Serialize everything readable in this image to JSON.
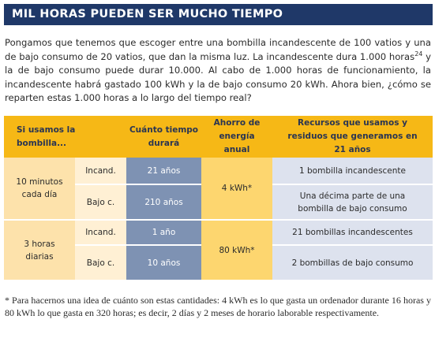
{
  "title": "MIL HORAS PUEDEN SER MUCHO TIEMPO",
  "intro": {
    "text_before": "Pongamos que tenemos que escoger entre una bombilla incandescente de 100 vatios y una de bajo consumo de 20 vatios, que dan la misma luz. La incandescente dura 1.000 horas",
    "superscript": "24",
    "text_after": " y la de bajo consumo puede durar 10.000. Al cabo de 1.000 horas de funcionamiento, la incandescente habrá gastado 100 kWh y la de bajo consumo 20 kWh. Ahora bien, ¿cómo se reparten estas 1.000 horas a lo largo del tiempo real?"
  },
  "table": {
    "headers": [
      "Si usamos la bombilla...",
      "Cuánto tiempo durará",
      "Ahorro de energía anual",
      "Recursos que usamos y residuos que generamos en 21 años"
    ],
    "groups": [
      {
        "usage": "10 minutos cada día",
        "saving": "4 kWh*",
        "rows": [
          {
            "type": "Incand.",
            "duration": "21 años",
            "resources": "1 bombilla incandescente"
          },
          {
            "type": "Bajo c.",
            "duration": "210 años",
            "resources": "Una décima parte de una bombilla de bajo consumo"
          }
        ]
      },
      {
        "usage": "3 horas diarias",
        "saving": "80 kWh*",
        "rows": [
          {
            "type": "Incand.",
            "duration": "1 año",
            "resources": "21 bombillas incandescentes"
          },
          {
            "type": "Bajo c.",
            "duration": "10 años",
            "resources": "2 bombillas de bajo consumo"
          }
        ]
      }
    ]
  },
  "footnote": "* Para hacernos una idea de cuánto son estas cantidades: 4 kWh es lo que gasta un ordenador durante 16 horas y 80 kWh lo que gasta en 320 horas; es decir, 2 días y 2 meses de horario laborable respectivamente."
}
